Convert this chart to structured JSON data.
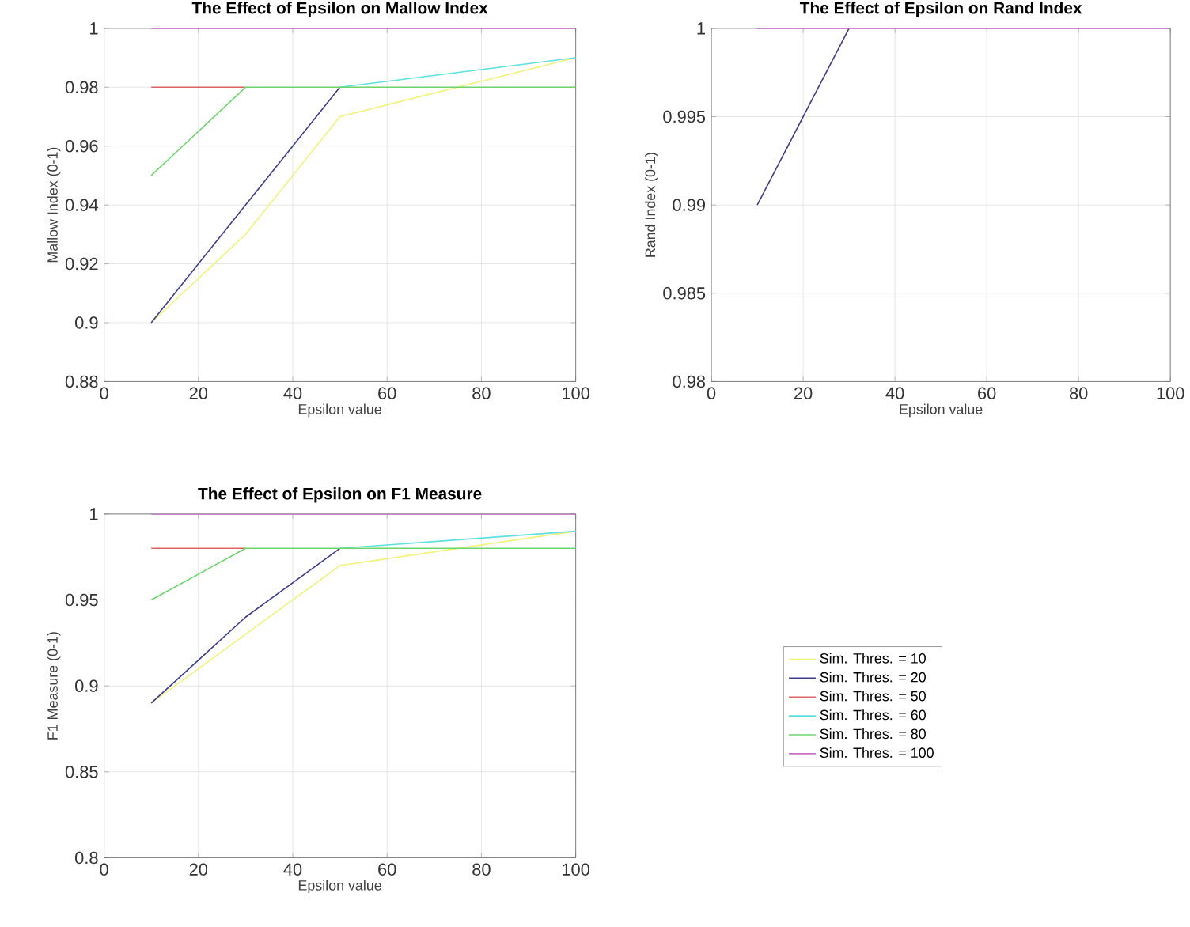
{
  "chart_data": [
    {
      "type": "line",
      "title": "The Effect of Epsilon on Mallow Index",
      "xlabel": "Epsilon value",
      "ylabel": "Mallow Index (0-1)",
      "x": [
        10,
        30,
        50,
        100
      ],
      "xlim": [
        0,
        100
      ],
      "xticks": [
        0,
        20,
        40,
        60,
        80,
        100
      ],
      "ylim": [
        0.88,
        1
      ],
      "yticks": [
        0.88,
        0.9,
        0.92,
        0.94,
        0.96,
        0.98,
        1
      ],
      "grid": true,
      "series": [
        {
          "color": "#f2f27a",
          "values": [
            0.9,
            0.93,
            0.97,
            0.99
          ]
        },
        {
          "color": "#3c3c8c",
          "values": [
            0.9,
            0.94,
            0.98,
            null
          ]
        },
        {
          "color": "#e06464",
          "values": [
            0.98,
            0.98,
            null,
            null
          ]
        },
        {
          "color": "#5ce0e0",
          "values": [
            null,
            null,
            0.98,
            0.99
          ]
        },
        {
          "color": "#6cd66c",
          "values": [
            0.95,
            0.98,
            0.98,
            0.98
          ]
        },
        {
          "color": "#cc70cc",
          "values": [
            1,
            1,
            1,
            1
          ]
        }
      ]
    },
    {
      "type": "line",
      "title": "The Effect of Epsilon on Rand Index",
      "xlabel": "Epsilon value",
      "ylabel": "Rand Index (0-1)",
      "x": [
        10,
        30,
        50,
        100
      ],
      "xlim": [
        0,
        100
      ],
      "xticks": [
        0,
        20,
        40,
        60,
        80,
        100
      ],
      "ylim": [
        0.98,
        1
      ],
      "yticks": [
        0.98,
        0.985,
        0.99,
        0.995,
        1
      ],
      "grid": true,
      "series": [
        {
          "color": "#3c3c8c",
          "values": [
            0.99,
            1,
            null,
            null
          ]
        },
        {
          "color": "#cc70cc",
          "values": [
            1,
            1,
            1,
            1
          ]
        }
      ]
    },
    {
      "type": "line",
      "title": "The Effect of Epsilon on F1 Measure",
      "xlabel": "Epsilon value",
      "ylabel": "F1 Measure (0-1)",
      "x": [
        10,
        30,
        50,
        100
      ],
      "xlim": [
        0,
        100
      ],
      "xticks": [
        0,
        20,
        40,
        60,
        80,
        100
      ],
      "ylim": [
        0.8,
        1
      ],
      "yticks": [
        0.8,
        0.85,
        0.9,
        0.95,
        1
      ],
      "grid": true,
      "legend": "right",
      "series": [
        {
          "name": "Sim. Thres. = 10",
          "color": "#f2f27a",
          "values": [
            0.89,
            0.93,
            0.97,
            0.99
          ]
        },
        {
          "name": "Sim. Thres. = 20",
          "color": "#3c3c8c",
          "values": [
            0.89,
            0.94,
            0.98,
            null
          ]
        },
        {
          "name": "Sim. Thres. = 50",
          "color": "#e06464",
          "values": [
            0.98,
            0.98,
            null,
            null
          ]
        },
        {
          "name": "Sim. Thres. = 60",
          "color": "#5ce0e0",
          "values": [
            null,
            null,
            0.98,
            0.99
          ]
        },
        {
          "name": "Sim. Thres. = 80",
          "color": "#6cd66c",
          "values": [
            0.95,
            0.98,
            0.98,
            0.98
          ]
        },
        {
          "name": "Sim. Thres. = 100",
          "color": "#cc70cc",
          "values": [
            1,
            1,
            1,
            1
          ]
        }
      ]
    }
  ]
}
